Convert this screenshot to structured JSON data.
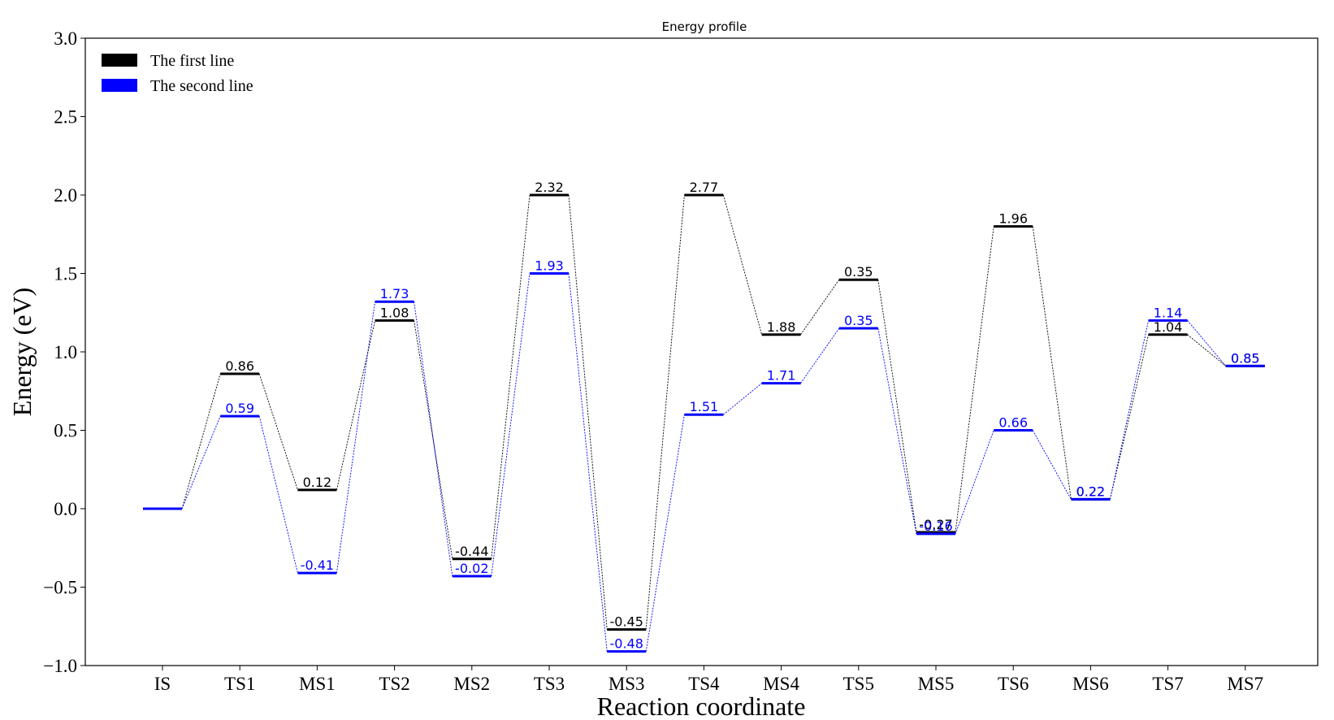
{
  "chart_data": {
    "type": "line",
    "title": "Energy profile",
    "xlabel": "Reaction coordinate",
    "ylabel": "Energy (eV)",
    "categories": [
      "IS",
      "TS1",
      "MS1",
      "TS2",
      "MS2",
      "TS3",
      "MS3",
      "TS4",
      "MS4",
      "TS5",
      "MS5",
      "TS6",
      "MS6",
      "TS7",
      "MS7"
    ],
    "ylim": [
      -1.0,
      3.0
    ],
    "yticks": [
      "3.0",
      "2.5",
      "2.0",
      "1.5",
      "1.0",
      "0.5",
      "0.0",
      "−0.5",
      "−1.0"
    ],
    "ytick_values": [
      3.0,
      2.5,
      2.0,
      1.5,
      1.0,
      0.5,
      0.0,
      -0.5,
      -1.0
    ],
    "grid": false,
    "legend_position": "top-left",
    "series": [
      {
        "name": "The first line",
        "color": "#000000",
        "levels": [
          0.0,
          0.86,
          0.12,
          1.2,
          -0.32,
          2.0,
          -0.77,
          2.0,
          1.11,
          1.46,
          -0.15,
          1.8,
          0.06,
          1.11,
          0.91
        ],
        "labels": [
          "",
          "0.86",
          "0.12",
          "1.08",
          "-0.44",
          "2.32",
          "-0.45",
          "2.77",
          "1.88",
          "0.35",
          "-0.27",
          "1.96",
          "0.22",
          "1.04",
          "0.85"
        ]
      },
      {
        "name": "The second line",
        "color": "#0000ff",
        "levels": [
          0.0,
          0.59,
          -0.41,
          1.32,
          -0.43,
          1.5,
          -0.91,
          0.6,
          0.8,
          1.15,
          -0.16,
          0.5,
          0.06,
          1.2,
          0.91
        ],
        "labels": [
          "",
          "0.59",
          "-0.41",
          "1.73",
          "-0.02",
          "1.93",
          "-0.48",
          "1.51",
          "1.71",
          "0.35",
          "-0.16",
          "0.66",
          "0.22",
          "1.14",
          "0.85"
        ]
      }
    ]
  }
}
